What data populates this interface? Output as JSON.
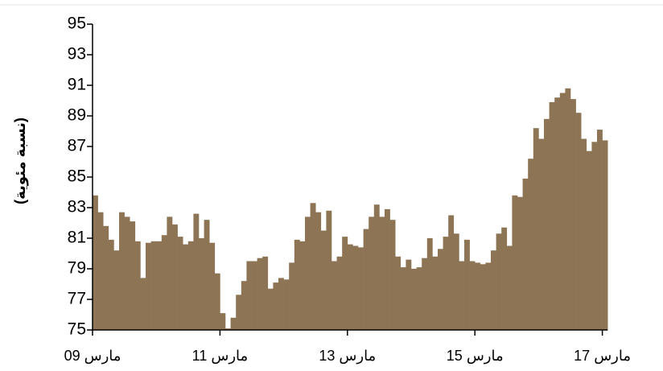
{
  "chart_data": {
    "type": "bar",
    "y_label": "(نسبة مئوية)",
    "categories": [
      "09 مارس",
      null,
      null,
      null,
      null,
      null,
      null,
      null,
      null,
      null,
      null,
      null,
      null,
      null,
      null,
      null,
      null,
      null,
      null,
      null,
      null,
      null,
      null,
      null,
      "11 مارس",
      null,
      null,
      null,
      null,
      null,
      null,
      null,
      null,
      null,
      null,
      null,
      null,
      null,
      null,
      null,
      null,
      null,
      null,
      null,
      null,
      null,
      null,
      null,
      "13 مارس",
      null,
      null,
      null,
      null,
      null,
      null,
      null,
      null,
      null,
      null,
      null,
      null,
      null,
      null,
      null,
      null,
      null,
      null,
      null,
      null,
      null,
      null,
      null,
      "15 مارس",
      null,
      null,
      null,
      null,
      null,
      null,
      null,
      null,
      null,
      null,
      null,
      null,
      null,
      null,
      null,
      null,
      null,
      null,
      null,
      null,
      null,
      null,
      null,
      "17 مارس"
    ],
    "values": [
      83.8,
      82.7,
      81.8,
      80.9,
      80.2,
      82.7,
      82.4,
      82.1,
      80.8,
      78.4,
      80.7,
      80.8,
      80.8,
      81.2,
      82.4,
      81.9,
      81.1,
      80.6,
      80.8,
      82.6,
      81.0,
      82.2,
      80.7,
      78.7,
      76.1,
      75.1,
      75.8,
      77.3,
      78.2,
      79.5,
      79.5,
      79.7,
      79.8,
      77.7,
      78.1,
      78.4,
      78.3,
      79.4,
      80.9,
      80.8,
      82.4,
      83.3,
      82.7,
      81.5,
      82.8,
      79.5,
      79.8,
      81.1,
      80.6,
      80.5,
      80.4,
      81.6,
      82.4,
      83.2,
      82.4,
      82.9,
      82.2,
      79.8,
      79.1,
      79.6,
      79.0,
      79.1,
      79.7,
      81.0,
      79.8,
      80.3,
      81.1,
      82.5,
      81.3,
      79.5,
      80.9,
      79.5,
      79.4,
      79.3,
      79.4,
      80.2,
      81.3,
      81.7,
      80.5,
      83.8,
      83.7,
      84.9,
      86.2,
      88.2,
      87.5,
      88.8,
      89.9,
      90.2,
      90.5,
      90.8,
      90.1,
      89.2,
      87.5,
      86.7,
      87.3,
      88.1,
      87.4
    ],
    "color": "#8c7455",
    "ylim": [
      75,
      95
    ],
    "yticks": [
      75,
      77,
      79,
      81,
      83,
      85,
      87,
      89,
      91,
      93,
      95
    ],
    "grid": false
  }
}
